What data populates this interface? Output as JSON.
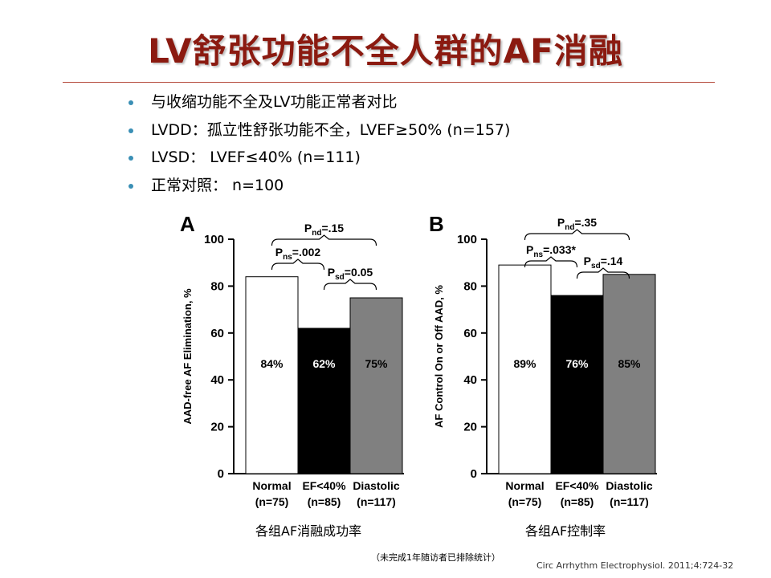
{
  "title": "LV舒张功能不全人群的AF消融",
  "bullets": [
    "与收缩功能不全及LV功能正常者对比",
    "LVDD：孤立性舒张功能不全，LVEF≥50% (n=157)",
    "LVSD：  LVEF≤40% (n=111)",
    "正常对照：  n=100"
  ],
  "colors": {
    "title": "#8b1a10",
    "rule": "#b54a3c",
    "bullet": "#3a8fb5",
    "normal": "#ffffff",
    "ef": "#000000",
    "diastolic": "#808080"
  },
  "chart_data": [
    {
      "type": "bar",
      "panel": "A",
      "ylabel": "AAD-free AF  Elimination, %",
      "ylim": [
        0,
        100
      ],
      "yticks": [
        0,
        20,
        40,
        60,
        80,
        100
      ],
      "categories": [
        [
          "Normal",
          "(n=75)"
        ],
        [
          "EF<40%",
          "(n=85)"
        ],
        [
          "Diastolic",
          "(n=117)"
        ]
      ],
      "values": [
        84,
        62,
        75
      ],
      "value_labels": [
        "84%",
        "62%",
        "75%"
      ],
      "comparisons": [
        {
          "sub": "nd",
          "text": "=.15",
          "from": 0,
          "to": 2
        },
        {
          "sub": "ns",
          "text": "=.002",
          "from": 0,
          "to": 1
        },
        {
          "sub": "sd",
          "text": "=0.05",
          "from": 1,
          "to": 2
        }
      ],
      "caption": "各组AF消融成功率"
    },
    {
      "type": "bar",
      "panel": "B",
      "ylabel": "AF  Control On or Off AAD, %",
      "ylim": [
        0,
        100
      ],
      "yticks": [
        0,
        20,
        40,
        60,
        80,
        100
      ],
      "categories": [
        [
          "Normal",
          "(n=75)"
        ],
        [
          "EF<40%",
          "(n=85)"
        ],
        [
          "Diastolic",
          "(n=117)"
        ]
      ],
      "values": [
        89,
        76,
        85
      ],
      "value_labels": [
        "89%",
        "76%",
        "85%"
      ],
      "comparisons": [
        {
          "sub": "nd",
          "text": "=.35",
          "from": 0,
          "to": 2
        },
        {
          "sub": "ns",
          "text": "=.033*",
          "from": 0,
          "to": 1
        },
        {
          "sub": "sd",
          "text": "=.14",
          "from": 1,
          "to": 2
        }
      ],
      "caption": "各组AF控制率"
    }
  ],
  "footnote": "（未完成1年随访者已排除统计）",
  "citation": "Circ Arrhythm Electrophysiol. 2011;4:724-32",
  "p_letter": "P"
}
